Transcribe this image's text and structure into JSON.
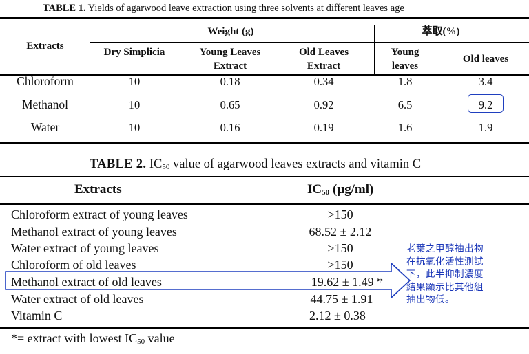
{
  "table1": {
    "caption_label": "TABLE 1.",
    "caption_text": " Yields of agarwood leave extraction using three solvents at different leaves age",
    "header": {
      "extracts": "Extracts",
      "weight_group": "Weight (g)",
      "yield_group": "萃取(%)",
      "columns": [
        "Dry Simplicia",
        "Young Leaves Extract",
        "Old Leaves Extract",
        "Young leaves",
        "Old leaves"
      ]
    },
    "rows": [
      {
        "name": "Chloroform",
        "values": [
          "10",
          "0.18",
          "0.34",
          "1.8",
          "3.4"
        ]
      },
      {
        "name": "Methanol",
        "values": [
          "10",
          "0.65",
          "0.92",
          "6.5",
          "9.2"
        ]
      },
      {
        "name": "Water",
        "values": [
          "10",
          "0.16",
          "0.19",
          "1.6",
          "1.9"
        ]
      }
    ],
    "highlight_color": "#1f3fbf"
  },
  "table2": {
    "caption_label": "TABLE 2.",
    "caption_pre": " IC",
    "caption_sub": "50",
    "caption_post": " value of agarwood leaves extracts and vitamin C",
    "header": {
      "extracts": "Extracts",
      "ic_pre": "IC",
      "ic_sub": "50",
      "ic_post": " (µg/ml)"
    },
    "rows": [
      {
        "name": "Chloroform extract of young leaves",
        "value": ">150"
      },
      {
        "name": "Methanol extract of young leaves",
        "value": "68.52 ± 2.12"
      },
      {
        "name": "Water extract of young leaves",
        "value": ">150"
      },
      {
        "name": "Chloroform of old leaves",
        "value": ">150"
      },
      {
        "name": "Methanol extract of old leaves",
        "value": "19.62 ± 1.49 *"
      },
      {
        "name": "Water extract of old leaves",
        "value": "44.75 ± 1.91"
      },
      {
        "name": "Vitamin C",
        "value": "2.12 ± 0.38"
      }
    ],
    "footnote_pre": "*= extract with lowest IC",
    "footnote_sub": "50",
    "footnote_post": " value"
  },
  "annotation": {
    "lines": [
      "老葉之甲醇抽出物",
      "在抗氧化活性測試",
      "下，此半抑制濃度",
      "結果顯示比其他組",
      "抽出物低。"
    ],
    "color": "#1a36b8"
  }
}
